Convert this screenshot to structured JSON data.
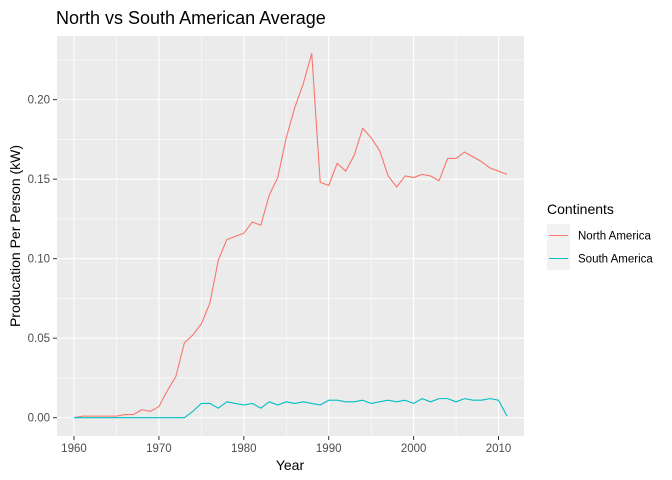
{
  "chart_data": {
    "type": "line",
    "title": "North vs South American Average",
    "xlabel": "Year",
    "ylabel": "Producation Per Person (kW)",
    "xlim": [
      1958,
      2013
    ],
    "ylim": [
      -0.0115,
      0.24
    ],
    "x_ticks": [
      1960,
      1970,
      1980,
      1990,
      2000,
      2010
    ],
    "x_tick_labels": [
      "1960",
      "1970",
      "1980",
      "1990",
      "2000",
      "2010"
    ],
    "y_ticks": [
      0.0,
      0.05,
      0.1,
      0.15,
      0.2
    ],
    "y_tick_labels": [
      "0.00",
      "0.05",
      "0.10",
      "0.15",
      "0.20"
    ],
    "grid": true,
    "background": "#ebebeb",
    "legend": {
      "title": "Continents",
      "position": "right"
    },
    "x": [
      1960,
      1961,
      1962,
      1963,
      1964,
      1965,
      1966,
      1967,
      1968,
      1969,
      1970,
      1971,
      1972,
      1973,
      1974,
      1975,
      1976,
      1977,
      1978,
      1979,
      1980,
      1981,
      1982,
      1983,
      1984,
      1985,
      1986,
      1987,
      1988,
      1989,
      1990,
      1991,
      1992,
      1993,
      1994,
      1995,
      1996,
      1997,
      1998,
      1999,
      2000,
      2001,
      2002,
      2003,
      2004,
      2005,
      2006,
      2007,
      2008,
      2009,
      2010,
      2011
    ],
    "series": [
      {
        "name": "North America",
        "color": "#F8766D",
        "values": [
          0.0,
          0.001,
          0.001,
          0.001,
          0.001,
          0.001,
          0.002,
          0.002,
          0.005,
          0.004,
          0.007,
          0.017,
          0.026,
          0.047,
          0.052,
          0.059,
          0.072,
          0.099,
          0.112,
          0.114,
          0.116,
          0.123,
          0.121,
          0.14,
          0.151,
          0.176,
          0.195,
          0.21,
          0.229,
          0.148,
          0.146,
          0.16,
          0.155,
          0.165,
          0.182,
          0.176,
          0.168,
          0.152,
          0.145,
          0.152,
          0.151,
          0.153,
          0.152,
          0.149,
          0.163,
          0.163,
          0.167,
          0.164,
          0.161,
          0.157,
          0.155,
          0.153
        ]
      },
      {
        "name": "South America",
        "color": "#00BFC4",
        "values": [
          0.0,
          0.0,
          0.0,
          0.0,
          0.0,
          0.0,
          0.0,
          0.0,
          0.0,
          0.0,
          0.0,
          0.0,
          0.0,
          0.0,
          0.004,
          0.009,
          0.009,
          0.006,
          0.01,
          0.009,
          0.008,
          0.009,
          0.006,
          0.01,
          0.008,
          0.01,
          0.009,
          0.01,
          0.009,
          0.008,
          0.011,
          0.011,
          0.01,
          0.01,
          0.011,
          0.009,
          0.01,
          0.011,
          0.01,
          0.011,
          0.009,
          0.012,
          0.01,
          0.012,
          0.012,
          0.01,
          0.012,
          0.011,
          0.011,
          0.012,
          0.011,
          0.001
        ]
      }
    ]
  }
}
